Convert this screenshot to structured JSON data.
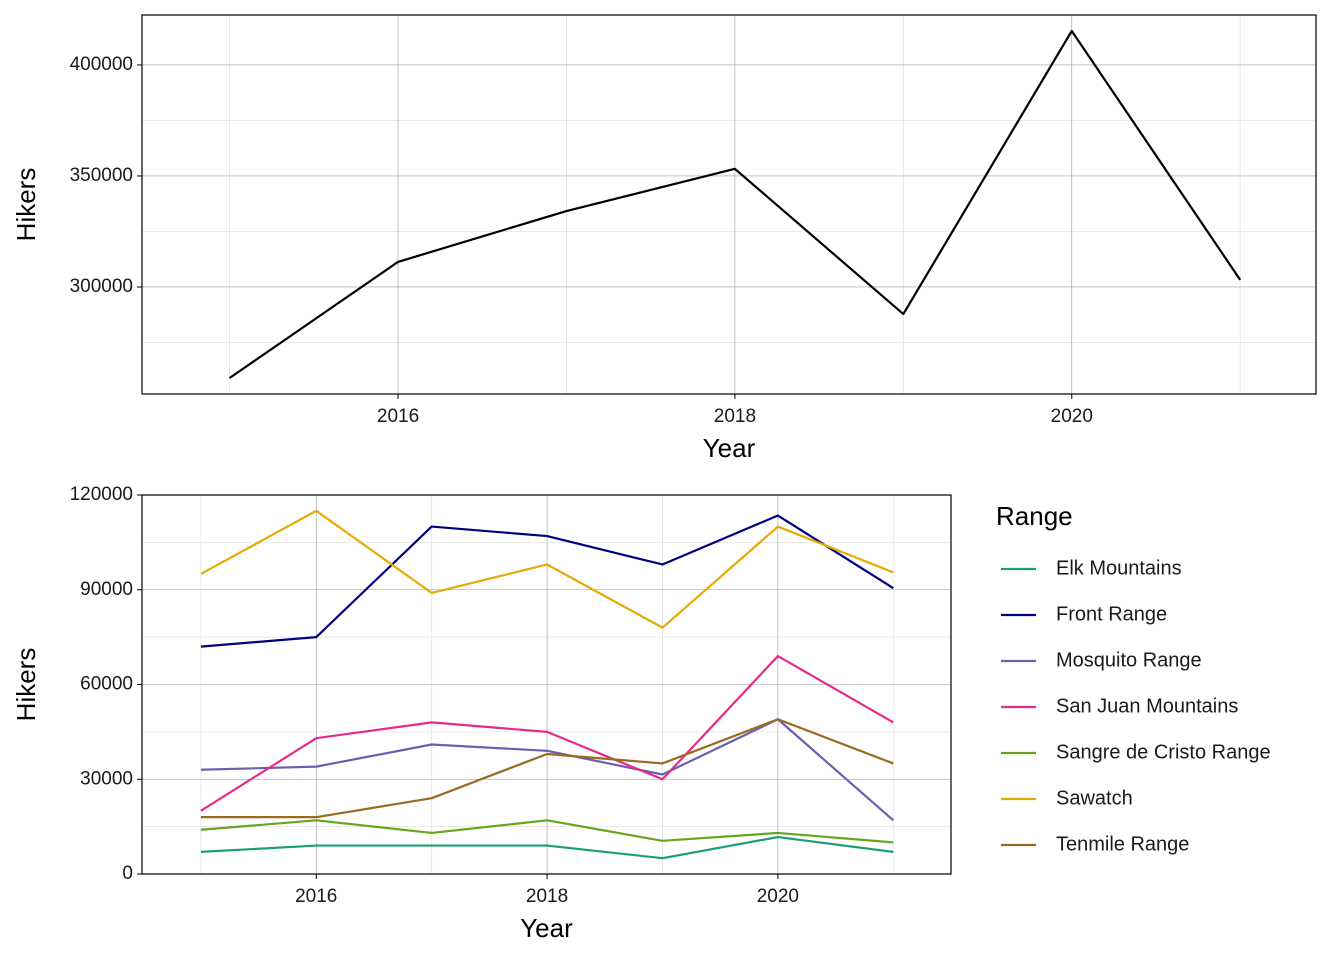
{
  "chart_data": [
    {
      "type": "line",
      "x_label": "Year",
      "y_label": "Hikers",
      "x": [
        2015,
        2016,
        2017,
        2018,
        2019,
        2020,
        2021
      ],
      "values": [
        259000,
        311300,
        334200,
        353200,
        287800,
        415300,
        303200
      ],
      "color": "#000000",
      "xlim": [
        2014.48,
        2021.45
      ],
      "xticks": [
        2016,
        2018,
        2020
      ],
      "xminor": [
        2015,
        2017,
        2019,
        2021
      ],
      "ylim": [
        251800,
        422500
      ],
      "yticks": [
        300000,
        350000,
        400000
      ],
      "yminor": [
        275000,
        325000,
        375000
      ],
      "grid": true
    },
    {
      "type": "line",
      "x_label": "Year",
      "y_label": "Hikers",
      "legend_title": "Range",
      "legend": "right",
      "x": [
        2015,
        2016,
        2017,
        2018,
        2019,
        2020,
        2021
      ],
      "series": [
        {
          "name": "Elk Mountains",
          "color": "#1b9e77",
          "values": [
            7000,
            9000,
            9000,
            9000,
            5000,
            11700,
            7000
          ]
        },
        {
          "name": "Front Range",
          "color": "#000080",
          "values": [
            72000,
            75000,
            110000,
            107000,
            98000,
            113500,
            90500
          ]
        },
        {
          "name": "Mosquito Range",
          "color": "#6a5fb0",
          "values": [
            33000,
            34000,
            41000,
            39000,
            31500,
            49000,
            17000
          ]
        },
        {
          "name": "San Juan Mountains",
          "color": "#e7298a",
          "values": [
            20000,
            43000,
            48000,
            45000,
            30000,
            69000,
            48000
          ]
        },
        {
          "name": "Sangre de Cristo Range",
          "color": "#66a61e",
          "values": [
            14000,
            17000,
            13000,
            17000,
            10500,
            13000,
            10000
          ]
        },
        {
          "name": "Sawatch",
          "color": "#e6ab02",
          "values": [
            95000,
            115000,
            89000,
            98000,
            78000,
            110000,
            95500
          ]
        },
        {
          "name": "Tenmile Range",
          "color": "#9a6a1e",
          "values": [
            18000,
            18000,
            24000,
            38000,
            35000,
            49000,
            35000
          ]
        }
      ],
      "xlim": [
        2014.49,
        2021.5
      ],
      "xticks": [
        2016,
        2018,
        2020
      ],
      "xminor": [
        2015,
        2017,
        2019,
        2021
      ],
      "ylim": [
        0,
        120000
      ],
      "yticks": [
        0,
        30000,
        60000,
        90000,
        120000
      ],
      "yminor": [
        15000,
        45000,
        75000,
        105000
      ],
      "grid": true
    }
  ]
}
